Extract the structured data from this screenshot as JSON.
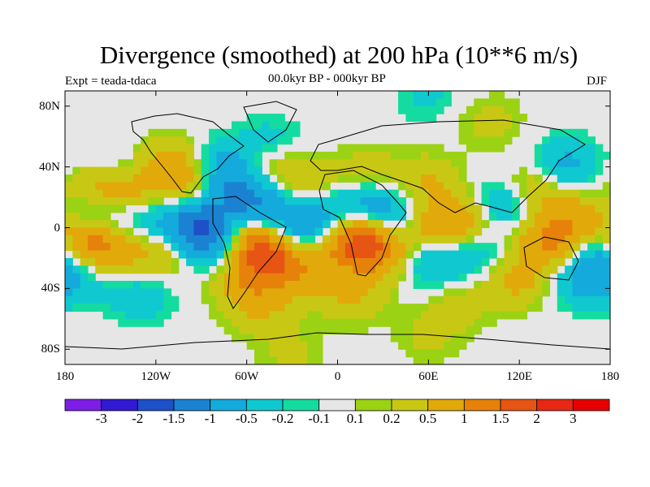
{
  "title": "Divergence (smoothed) at 200 hPa (10**6 m/s)",
  "experiment": "Expt = teada-tdaca",
  "period": "00.0kyr BP - 000kyr BP",
  "season": "DJF",
  "map": {
    "projection": "cylindrical-equidistant",
    "lon_range": [
      -180,
      180
    ],
    "lat_range": [
      -90,
      90
    ],
    "lat_ticks": [
      {
        "value": 80,
        "label": "80N"
      },
      {
        "value": 40,
        "label": "40N"
      },
      {
        "value": 0,
        "label": "0"
      },
      {
        "value": -40,
        "label": "40S"
      },
      {
        "value": -80,
        "label": "80S"
      }
    ],
    "lon_ticks": [
      {
        "value": -180,
        "label": "180"
      },
      {
        "value": -120,
        "label": "120W"
      },
      {
        "value": -60,
        "label": "60W"
      },
      {
        "value": 0,
        "label": "0"
      },
      {
        "value": 60,
        "label": "60E"
      },
      {
        "value": 120,
        "label": "120E"
      },
      {
        "value": 180,
        "label": "180"
      }
    ],
    "neutral_color": "#e6e6e6"
  },
  "colorbar": {
    "labels": [
      "-3",
      "-2",
      "-1.5",
      "-1",
      "-0.5",
      "-0.2",
      "-0.1",
      "0.1",
      "0.2",
      "0.5",
      "1",
      "1.5",
      "2",
      "3"
    ],
    "colors": [
      "#7d1ee6",
      "#3219d2",
      "#1e50c8",
      "#1b82d2",
      "#14aadc",
      "#10c8d0",
      "#14dca0",
      "#e6e6e6",
      "#9bd214",
      "#c8c814",
      "#e1aa0a",
      "#e6820a",
      "#e65514",
      "#e62814",
      "#e60000"
    ]
  },
  "blobs": [
    {
      "lon": -160,
      "lat": 25,
      "v": 0.8
    },
    {
      "lon": -135,
      "lat": 22,
      "v": 0.6
    },
    {
      "lon": -160,
      "lat": -15,
      "v": 1.2
    },
    {
      "lon": -170,
      "lat": -5,
      "v": 0.8
    },
    {
      "lon": -120,
      "lat": -15,
      "v": 0.7
    },
    {
      "lon": -165,
      "lat": 10,
      "v": -0.8
    },
    {
      "lon": -130,
      "lat": 5,
      "v": -0.6
    },
    {
      "lon": -150,
      "lat": 38,
      "v": -0.3
    },
    {
      "lon": -170,
      "lat": -30,
      "v": -0.6
    },
    {
      "lon": -95,
      "lat": 2,
      "v": -1.3
    },
    {
      "lon": -80,
      "lat": -10,
      "v": -0.9
    },
    {
      "lon": -100,
      "lat": 30,
      "v": 0.8
    },
    {
      "lon": -110,
      "lat": 45,
      "v": 0.5
    },
    {
      "lon": -80,
      "lat": 40,
      "v": -0.7
    },
    {
      "lon": -65,
      "lat": 25,
      "v": -0.8
    },
    {
      "lon": -50,
      "lat": 10,
      "v": -0.9
    },
    {
      "lon": -45,
      "lat": 55,
      "v": -0.4
    },
    {
      "lon": -45,
      "lat": 40,
      "v": 0.5
    },
    {
      "lon": -20,
      "lat": 30,
      "v": 0.4
    },
    {
      "lon": -55,
      "lat": -8,
      "v": 1.5
    },
    {
      "lon": -40,
      "lat": -20,
      "v": 1.2
    },
    {
      "lon": -60,
      "lat": -35,
      "v": 0.7
    },
    {
      "lon": -20,
      "lat": -30,
      "v": 0.5
    },
    {
      "lon": -30,
      "lat": -5,
      "v": -0.8
    },
    {
      "lon": -10,
      "lat": 5,
      "v": -0.7
    },
    {
      "lon": 10,
      "lat": -8,
      "v": 1.6
    },
    {
      "lon": 30,
      "lat": -15,
      "v": 1.0
    },
    {
      "lon": 20,
      "lat": 15,
      "v": -0.7
    },
    {
      "lon": 40,
      "lat": 5,
      "v": -0.6
    },
    {
      "lon": 20,
      "lat": 35,
      "v": 0.4
    },
    {
      "lon": 60,
      "lat": 30,
      "v": 0.5
    },
    {
      "lon": 65,
      "lat": 0,
      "v": 1.0
    },
    {
      "lon": 90,
      "lat": 5,
      "v": 0.6
    },
    {
      "lon": 60,
      "lat": -20,
      "v": -0.7
    },
    {
      "lon": 90,
      "lat": -15,
      "v": -0.5
    },
    {
      "lon": 110,
      "lat": 15,
      "v": -0.8
    },
    {
      "lon": 130,
      "lat": 25,
      "v": 0.7
    },
    {
      "lon": 150,
      "lat": 40,
      "v": -0.7
    },
    {
      "lon": 140,
      "lat": -10,
      "v": 1.0
    },
    {
      "lon": 160,
      "lat": 5,
      "v": 0.8
    },
    {
      "lon": 175,
      "lat": -15,
      "v": -0.9
    },
    {
      "lon": 120,
      "lat": -35,
      "v": 0.6
    },
    {
      "lon": 160,
      "lat": -35,
      "v": -0.6
    },
    {
      "lon": 10,
      "lat": -45,
      "v": 0.5
    },
    {
      "lon": -130,
      "lat": -45,
      "v": -0.4
    },
    {
      "lon": -50,
      "lat": -55,
      "v": 0.4
    },
    {
      "lon": 80,
      "lat": -50,
      "v": 0.3
    },
    {
      "lon": 60,
      "lat": -72,
      "v": 0.25
    },
    {
      "lon": -30,
      "lat": -85,
      "v": 0.25
    },
    {
      "lon": 60,
      "lat": 85,
      "v": -0.25
    },
    {
      "lon": 100,
      "lat": 70,
      "v": 0.3
    }
  ]
}
